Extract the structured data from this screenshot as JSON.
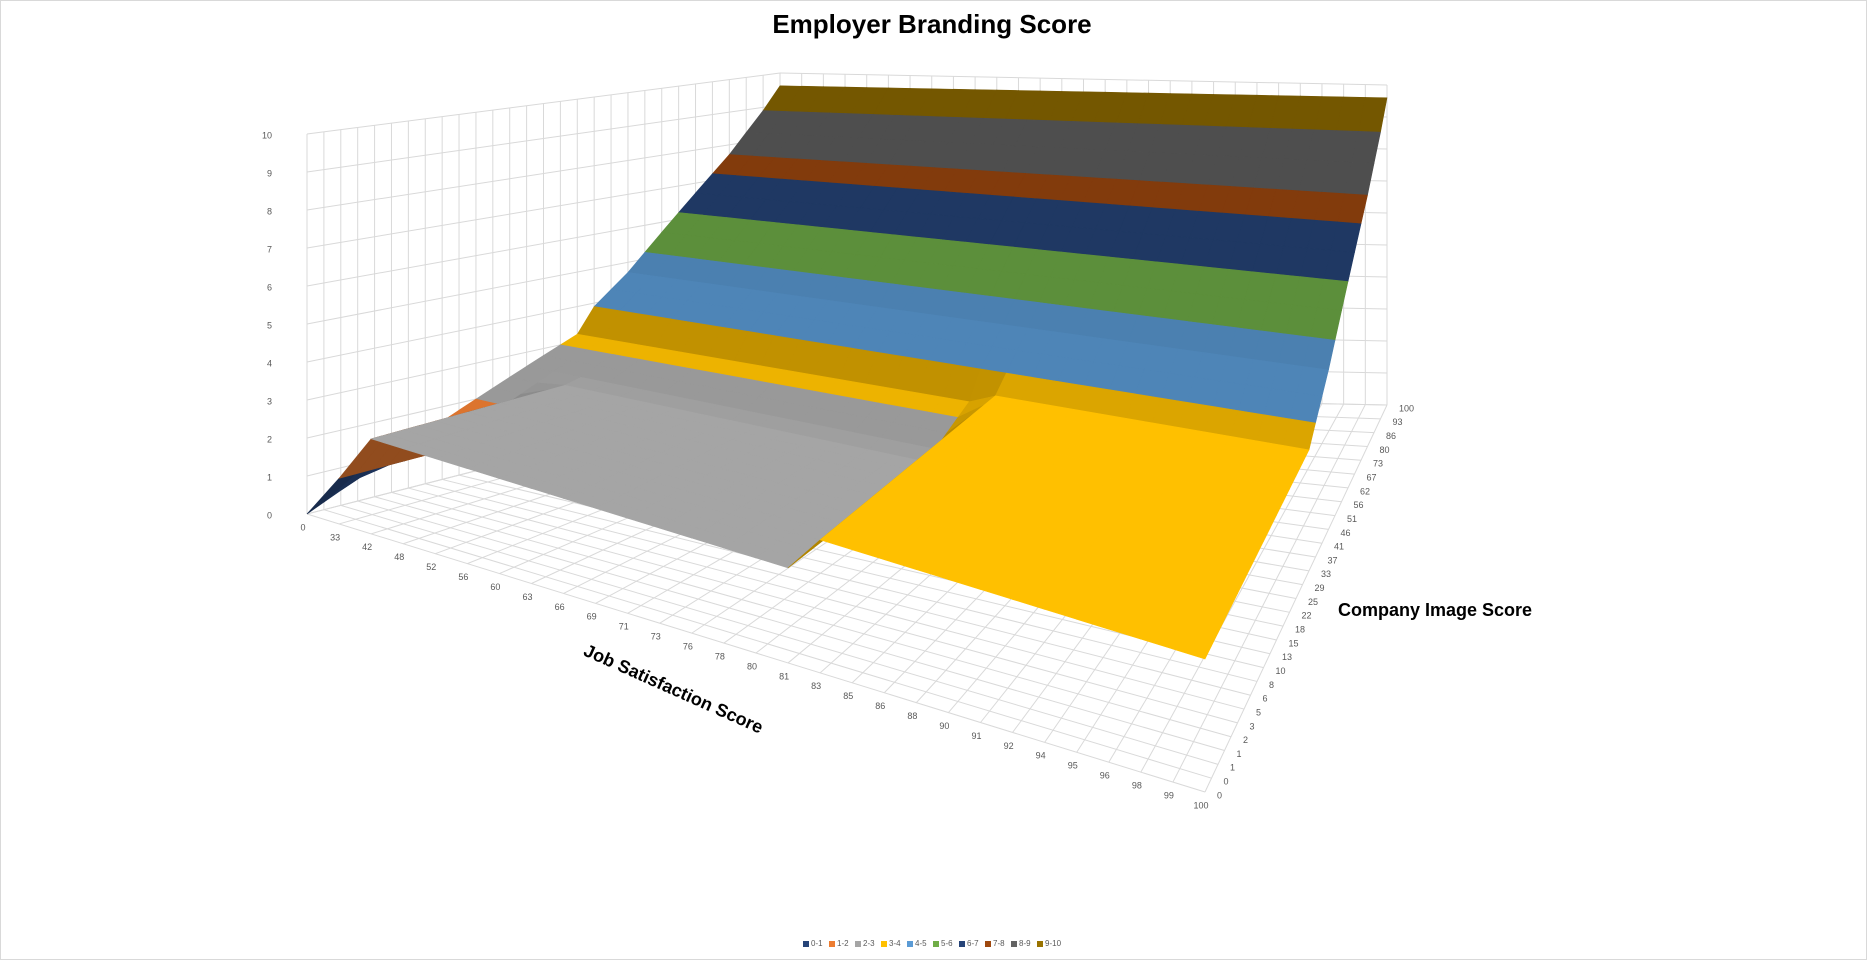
{
  "chart_data": {
    "type": "surface",
    "title": "Employer Branding Score",
    "x_label": "Job Satisfaction Score",
    "depth_label": "Company Image Score",
    "categories": [
      0,
      33,
      42,
      48,
      52,
      56,
      60,
      63,
      66,
      69,
      71,
      73,
      76,
      78,
      80,
      81,
      83,
      85,
      86,
      88,
      90,
      91,
      92,
      94,
      95,
      96,
      98,
      99,
      100
    ],
    "depth_categories": [
      0,
      0,
      1,
      1,
      2,
      3,
      5,
      6,
      8,
      10,
      13,
      15,
      18,
      22,
      25,
      29,
      33,
      37,
      41,
      46,
      51,
      56,
      62,
      67,
      73,
      80,
      86,
      93,
      100
    ],
    "zlim": [
      0,
      10
    ],
    "zticks": [
      0,
      1,
      2,
      3,
      4,
      5,
      6,
      7,
      8,
      9,
      10
    ],
    "grid": true,
    "bands": [
      {
        "name": "0-1",
        "color": "#264478"
      },
      {
        "name": "1-2",
        "color": "#ed7d31"
      },
      {
        "name": "2-3",
        "color": "#a5a5a5"
      },
      {
        "name": "3-4",
        "color": "#ffc000"
      },
      {
        "name": "4-5",
        "color": "#5b9bd5"
      },
      {
        "name": "5-6",
        "color": "#70ad47"
      },
      {
        "name": "6-7",
        "color": "#264478"
      },
      {
        "name": "7-8",
        "color": "#9e480e"
      },
      {
        "name": "8-9",
        "color": "#636363"
      },
      {
        "name": "9-10",
        "color": "#997300"
      }
    ],
    "z": [
      [
        0,
        1.2,
        2.5,
        2.5,
        2.5,
        2.5,
        2.5,
        2.5,
        2.5,
        2.5,
        2.5,
        2.5,
        2.5,
        2.5,
        2.5,
        2.5,
        3.5,
        3.5,
        3.5,
        3.5,
        3.5,
        3.5,
        3.5,
        3.5,
        3.5,
        3.5,
        3.5,
        3.5,
        3.5
      ],
      [
        0.2,
        1.2,
        2.5,
        2.5,
        2.5,
        2.5,
        2.5,
        2.5,
        2.5,
        2.5,
        2.5,
        2.5,
        2.5,
        2.5,
        2.5,
        2.5,
        3.5,
        3.5,
        3.5,
        3.5,
        3.5,
        3.5,
        3.5,
        3.5,
        3.5,
        3.5,
        3.5,
        3.5,
        3.5
      ],
      [
        0.4,
        1.2,
        2.5,
        2.5,
        2.5,
        2.5,
        2.5,
        2.5,
        2.5,
        2.5,
        2.5,
        2.5,
        2.5,
        2.5,
        2.5,
        2.5,
        3.5,
        3.5,
        3.5,
        3.5,
        3.5,
        3.5,
        3.5,
        3.5,
        3.5,
        3.5,
        3.5,
        3.5,
        3.5
      ],
      [
        0.6,
        1.2,
        2.5,
        2.5,
        2.5,
        2.5,
        2.5,
        2.5,
        2.5,
        2.5,
        2.5,
        2.5,
        2.5,
        2.5,
        2.5,
        2.5,
        3.5,
        3.5,
        3.5,
        3.5,
        3.5,
        3.5,
        3.5,
        3.5,
        3.5,
        3.5,
        3.5,
        3.5,
        3.5
      ],
      [
        0.8,
        1.2,
        2.5,
        2.5,
        2.5,
        2.5,
        2.5,
        2.5,
        2.5,
        2.5,
        2.5,
        2.5,
        2.5,
        2.5,
        2.5,
        2.5,
        3.5,
        3.5,
        3.5,
        3.5,
        3.5,
        3.5,
        3.5,
        3.5,
        3.5,
        3.5,
        3.5,
        3.5,
        3.5
      ],
      [
        1,
        1.2,
        2.5,
        2.5,
        2.5,
        2.5,
        2.5,
        2.5,
        2.5,
        2.5,
        2.5,
        2.5,
        2.5,
        2.5,
        2.5,
        2.5,
        3.5,
        3.5,
        3.5,
        3.5,
        3.5,
        3.5,
        3.5,
        3.5,
        3.5,
        3.5,
        3.5,
        3.5,
        3.5
      ],
      [
        1.2,
        1.2,
        2.5,
        2.5,
        2.5,
        2.5,
        2.5,
        2.5,
        2.5,
        2.5,
        2.5,
        2.5,
        2.5,
        2.5,
        2.5,
        2.5,
        3.5,
        3.5,
        3.5,
        3.5,
        3.5,
        3.5,
        3.5,
        3.5,
        3.5,
        3.5,
        3.5,
        3.5,
        3.5
      ],
      [
        1.4,
        1.4,
        2.5,
        2.5,
        2.5,
        2.5,
        2.5,
        2.5,
        2.5,
        2.5,
        2.5,
        2.5,
        2.5,
        2.5,
        2.5,
        2.5,
        3.5,
        3.5,
        3.5,
        3.5,
        3.5,
        3.5,
        3.5,
        3.5,
        3.5,
        3.5,
        3.5,
        3.5,
        3.5
      ],
      [
        1.6,
        1.6,
        2.5,
        2.5,
        2.5,
        2.5,
        2.5,
        2.5,
        2.5,
        2.5,
        2.5,
        2.5,
        2.5,
        2.5,
        2.5,
        2.5,
        3.5,
        3.5,
        3.5,
        3.5,
        3.5,
        3.5,
        3.5,
        3.5,
        3.5,
        3.5,
        3.5,
        3.5,
        3.5
      ],
      [
        1.8,
        1.8,
        2.5,
        2.5,
        2.5,
        2.5,
        2.5,
        2.5,
        2.5,
        2.5,
        2.5,
        2.5,
        2.5,
        2.5,
        2.5,
        2.5,
        3.5,
        3.5,
        3.5,
        3.5,
        3.5,
        3.5,
        3.5,
        3.5,
        3.5,
        3.5,
        3.5,
        3.5,
        3.5
      ],
      [
        2,
        2,
        2.5,
        2.5,
        2.5,
        2.5,
        2.5,
        2.5,
        2.5,
        2.5,
        2.5,
        2.5,
        2.5,
        2.5,
        2.5,
        2.5,
        3.5,
        3.5,
        3.5,
        3.5,
        3.5,
        3.5,
        3.5,
        3.5,
        3.5,
        3.5,
        3.5,
        3.5,
        3.5
      ],
      [
        2.2,
        2.2,
        2.5,
        2.5,
        2.5,
        2.5,
        2.5,
        2.5,
        2.5,
        2.5,
        2.5,
        2.5,
        2.5,
        2.5,
        2.5,
        2.5,
        3.5,
        3.5,
        3.5,
        3.5,
        3.5,
        3.5,
        3.5,
        3.5,
        3.5,
        3.5,
        3.5,
        3.5,
        3.5
      ],
      [
        2.4,
        2.4,
        2.5,
        2.5,
        2.5,
        2.5,
        2.5,
        2.5,
        2.5,
        2.5,
        2.5,
        2.5,
        2.5,
        2.5,
        2.5,
        2.5,
        3.5,
        3.5,
        3.5,
        3.5,
        3.5,
        3.5,
        3.5,
        3.5,
        3.5,
        3.5,
        3.5,
        3.5,
        3.5
      ],
      [
        2.6,
        2.6,
        2.6,
        2.6,
        2.6,
        2.6,
        2.6,
        2.6,
        2.6,
        2.6,
        2.6,
        2.6,
        2.6,
        2.6,
        2.6,
        2.6,
        3.5,
        3.5,
        3.5,
        3.5,
        3.5,
        3.5,
        3.5,
        3.5,
        3.5,
        3.5,
        3.5,
        3.5,
        3.5
      ],
      [
        2.8,
        2.8,
        2.8,
        2.8,
        2.8,
        2.8,
        2.8,
        2.8,
        2.8,
        2.8,
        2.8,
        2.8,
        2.8,
        2.8,
        2.8,
        2.8,
        3.5,
        3.5,
        3.5,
        3.5,
        3.5,
        3.5,
        3.5,
        3.5,
        3.5,
        3.5,
        3.5,
        3.5,
        3.5
      ],
      [
        3,
        3,
        3,
        3,
        3,
        3,
        3,
        3,
        3,
        3,
        3,
        3,
        3,
        3,
        3,
        3,
        3.5,
        3.5,
        3.5,
        3.5,
        3.5,
        3.5,
        3.5,
        3.5,
        3.5,
        3.5,
        3.5,
        3.5,
        3.5
      ],
      [
        3.2,
        3.2,
        3.2,
        3.2,
        3.2,
        3.2,
        3.2,
        3.2,
        3.2,
        3.2,
        3.2,
        3.2,
        3.2,
        3.2,
        3.2,
        3.2,
        3.5,
        3.5,
        3.5,
        3.5,
        3.5,
        3.5,
        3.5,
        3.5,
        3.5,
        3.5,
        3.5,
        3.5,
        3.5
      ],
      [
        3.9,
        3.9,
        3.9,
        3.9,
        3.9,
        3.9,
        3.9,
        3.9,
        3.9,
        3.9,
        3.9,
        3.9,
        3.9,
        3.9,
        3.9,
        3.9,
        3.9,
        3.9,
        3.9,
        3.9,
        3.9,
        3.9,
        3.9,
        3.9,
        3.9,
        3.9,
        3.9,
        3.9,
        3.9
      ],
      [
        4.3,
        4.3,
        4.3,
        4.3,
        4.3,
        4.3,
        4.3,
        4.3,
        4.3,
        4.3,
        4.3,
        4.3,
        4.3,
        4.3,
        4.3,
        4.3,
        4.3,
        4.3,
        4.3,
        4.3,
        4.3,
        4.3,
        4.3,
        4.3,
        4.3,
        4.3,
        4.3,
        4.3,
        4.3
      ],
      [
        4.7,
        4.7,
        4.7,
        4.7,
        4.7,
        4.7,
        4.7,
        4.7,
        4.7,
        4.7,
        4.7,
        4.7,
        4.7,
        4.7,
        4.7,
        4.7,
        4.7,
        4.7,
        4.7,
        4.7,
        4.7,
        4.7,
        4.7,
        4.7,
        4.7,
        4.7,
        4.7,
        4.7,
        4.7
      ],
      [
        5.2,
        5.2,
        5.2,
        5.2,
        5.2,
        5.2,
        5.2,
        5.2,
        5.2,
        5.2,
        5.2,
        5.2,
        5.2,
        5.2,
        5.2,
        5.2,
        5.2,
        5.2,
        5.2,
        5.2,
        5.2,
        5.2,
        5.2,
        5.2,
        5.2,
        5.2,
        5.2,
        5.2,
        5.2
      ],
      [
        5.7,
        5.7,
        5.7,
        5.7,
        5.7,
        5.7,
        5.7,
        5.7,
        5.7,
        5.7,
        5.7,
        5.7,
        5.7,
        5.7,
        5.7,
        5.7,
        5.7,
        5.7,
        5.7,
        5.7,
        5.7,
        5.7,
        5.7,
        5.7,
        5.7,
        5.7,
        5.7,
        5.7,
        5.7
      ],
      [
        6.2,
        6.2,
        6.2,
        6.2,
        6.2,
        6.2,
        6.2,
        6.2,
        6.2,
        6.2,
        6.2,
        6.2,
        6.2,
        6.2,
        6.2,
        6.2,
        6.2,
        6.2,
        6.2,
        6.2,
        6.2,
        6.2,
        6.2,
        6.2,
        6.2,
        6.2,
        6.2,
        6.2,
        6.2
      ],
      [
        6.7,
        6.7,
        6.7,
        6.7,
        6.7,
        6.7,
        6.7,
        6.7,
        6.7,
        6.7,
        6.7,
        6.7,
        6.7,
        6.7,
        6.7,
        6.7,
        6.7,
        6.7,
        6.7,
        6.7,
        6.7,
        6.7,
        6.7,
        6.7,
        6.7,
        6.7,
        6.7,
        6.7,
        6.7
      ],
      [
        7.2,
        7.2,
        7.2,
        7.2,
        7.2,
        7.2,
        7.2,
        7.2,
        7.2,
        7.2,
        7.2,
        7.2,
        7.2,
        7.2,
        7.2,
        7.2,
        7.2,
        7.2,
        7.2,
        7.2,
        7.2,
        7.2,
        7.2,
        7.2,
        7.2,
        7.2,
        7.2,
        7.2,
        7.2
      ],
      [
        7.7,
        7.7,
        7.7,
        7.7,
        7.7,
        7.7,
        7.7,
        7.7,
        7.7,
        7.7,
        7.7,
        7.7,
        7.7,
        7.7,
        7.7,
        7.7,
        7.7,
        7.7,
        7.7,
        7.7,
        7.7,
        7.7,
        7.7,
        7.7,
        7.7,
        7.7,
        7.7,
        7.7,
        7.7
      ],
      [
        8.3,
        8.3,
        8.3,
        8.3,
        8.3,
        8.3,
        8.3,
        8.3,
        8.3,
        8.3,
        8.3,
        8.3,
        8.3,
        8.3,
        8.3,
        8.3,
        8.3,
        8.3,
        8.3,
        8.3,
        8.3,
        8.3,
        8.3,
        8.3,
        8.3,
        8.3,
        8.3,
        8.3,
        8.3
      ],
      [
        8.9,
        8.9,
        8.9,
        8.9,
        8.9,
        8.9,
        8.9,
        8.9,
        8.9,
        8.9,
        8.9,
        8.9,
        8.9,
        8.9,
        8.9,
        8.9,
        8.9,
        8.9,
        8.9,
        8.9,
        8.9,
        8.9,
        8.9,
        8.9,
        8.9,
        8.9,
        8.9,
        8.9,
        8.9
      ],
      [
        9.6,
        9.6,
        9.6,
        9.6,
        9.6,
        9.6,
        9.6,
        9.6,
        9.6,
        9.6,
        9.6,
        9.6,
        9.6,
        9.6,
        9.6,
        9.6,
        9.6,
        9.6,
        9.6,
        9.6,
        9.6,
        9.6,
        9.6,
        9.6,
        9.6,
        9.6,
        9.6,
        9.6,
        9.6
      ]
    ]
  }
}
